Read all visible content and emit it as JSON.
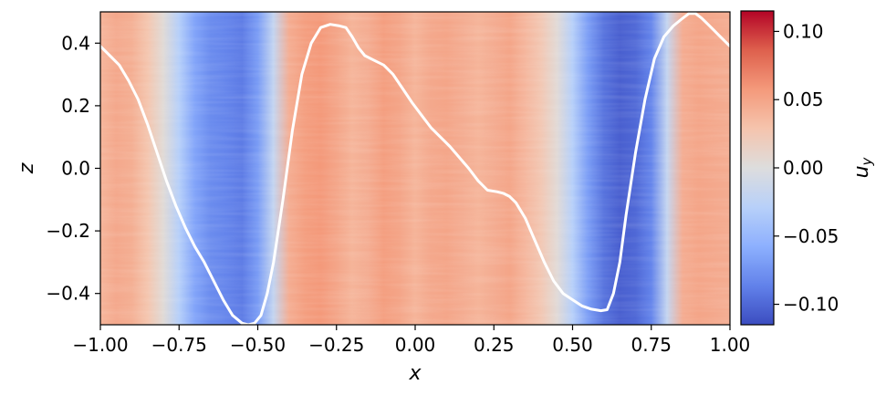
{
  "chart_data": {
    "type": "heatmap",
    "title": "",
    "xlabel": "x",
    "ylabel": "z",
    "xlim": [
      -1.0,
      1.0
    ],
    "ylim": [
      -0.5,
      0.5
    ],
    "x_ticks": [
      -1.0,
      -0.75,
      -0.5,
      -0.25,
      0.0,
      0.25,
      0.5,
      0.75,
      1.0
    ],
    "x_tick_labels": [
      "−1.00",
      "−0.75",
      "−0.50",
      "−0.25",
      "0.00",
      "0.25",
      "0.50",
      "0.75",
      "1.00"
    ],
    "y_ticks": [
      -0.4,
      -0.2,
      0.0,
      0.2,
      0.4
    ],
    "y_tick_labels": [
      "−0.4",
      "−0.2",
      "0.0",
      "0.2",
      "0.4"
    ],
    "colorbar": {
      "label": "u",
      "label_subscript": "y",
      "colormap": "coolwarm",
      "range": [
        -0.115,
        0.115
      ],
      "ticks": [
        -0.1,
        -0.05,
        0.0,
        0.05,
        0.1
      ],
      "tick_labels": [
        "−0.10",
        "−0.05",
        "0.00",
        "0.05",
        "0.10"
      ]
    },
    "field_profile": {
      "x": [
        -1.0,
        -0.95,
        -0.9,
        -0.85,
        -0.8,
        -0.75,
        -0.7,
        -0.65,
        -0.6,
        -0.55,
        -0.5,
        -0.45,
        -0.4,
        -0.35,
        -0.3,
        -0.25,
        -0.2,
        -0.15,
        -0.1,
        -0.05,
        0.0,
        0.05,
        0.1,
        0.15,
        0.2,
        0.25,
        0.3,
        0.35,
        0.4,
        0.45,
        0.5,
        0.55,
        0.6,
        0.65,
        0.7,
        0.75,
        0.8,
        0.85,
        0.9,
        0.95,
        1.0
      ],
      "u_y": [
        0.04,
        0.048,
        0.044,
        0.028,
        0.004,
        -0.03,
        -0.065,
        -0.08,
        -0.085,
        -0.09,
        -0.07,
        -0.02,
        0.045,
        0.055,
        0.058,
        0.05,
        0.04,
        0.045,
        0.055,
        0.05,
        0.04,
        0.048,
        0.05,
        0.045,
        0.04,
        0.045,
        0.05,
        0.038,
        0.025,
        0.005,
        -0.03,
        -0.07,
        -0.095,
        -0.105,
        -0.1,
        -0.085,
        -0.02,
        0.045,
        0.05,
        0.048,
        0.045
      ]
    },
    "series": [
      {
        "x": [
          -1.0,
          -0.97,
          -0.94,
          -0.91,
          -0.88,
          -0.85,
          -0.82,
          -0.79,
          -0.76,
          -0.73,
          -0.7,
          -0.67,
          -0.64,
          -0.61,
          -0.58,
          -0.55,
          -0.53,
          -0.51,
          -0.49,
          -0.47,
          -0.45,
          -0.42,
          -0.39,
          -0.36,
          -0.33,
          -0.3,
          -0.27,
          -0.24,
          -0.22,
          -0.2,
          -0.18,
          -0.16,
          -0.13,
          -0.1,
          -0.07,
          -0.04,
          -0.01,
          0.02,
          0.05,
          0.08,
          0.11,
          0.14,
          0.17,
          0.2,
          0.23,
          0.26,
          0.28,
          0.3,
          0.32,
          0.35,
          0.38,
          0.41,
          0.44,
          0.47,
          0.5,
          0.53,
          0.56,
          0.59,
          0.61,
          0.63,
          0.65,
          0.67,
          0.7,
          0.73,
          0.76,
          0.79,
          0.82,
          0.85,
          0.87,
          0.89,
          0.91,
          0.93,
          0.95,
          0.97,
          1.0
        ],
        "z": [
          0.39,
          0.36,
          0.33,
          0.28,
          0.22,
          0.14,
          0.05,
          -0.04,
          -0.12,
          -0.19,
          -0.25,
          -0.3,
          -0.36,
          -0.42,
          -0.47,
          -0.495,
          -0.5,
          -0.495,
          -0.47,
          -0.4,
          -0.3,
          -0.1,
          0.12,
          0.3,
          0.4,
          0.45,
          0.46,
          0.455,
          0.45,
          0.42,
          0.385,
          0.36,
          0.345,
          0.33,
          0.3,
          0.255,
          0.21,
          0.17,
          0.13,
          0.1,
          0.07,
          0.035,
          0.0,
          -0.04,
          -0.07,
          -0.075,
          -0.08,
          -0.09,
          -0.11,
          -0.16,
          -0.23,
          -0.3,
          -0.36,
          -0.4,
          -0.42,
          -0.44,
          -0.45,
          -0.455,
          -0.452,
          -0.4,
          -0.3,
          -0.15,
          0.05,
          0.22,
          0.35,
          0.42,
          0.455,
          0.48,
          0.495,
          0.495,
          0.48,
          0.46,
          0.44,
          0.42,
          0.39
        ],
        "color": "#ffffff"
      }
    ]
  }
}
